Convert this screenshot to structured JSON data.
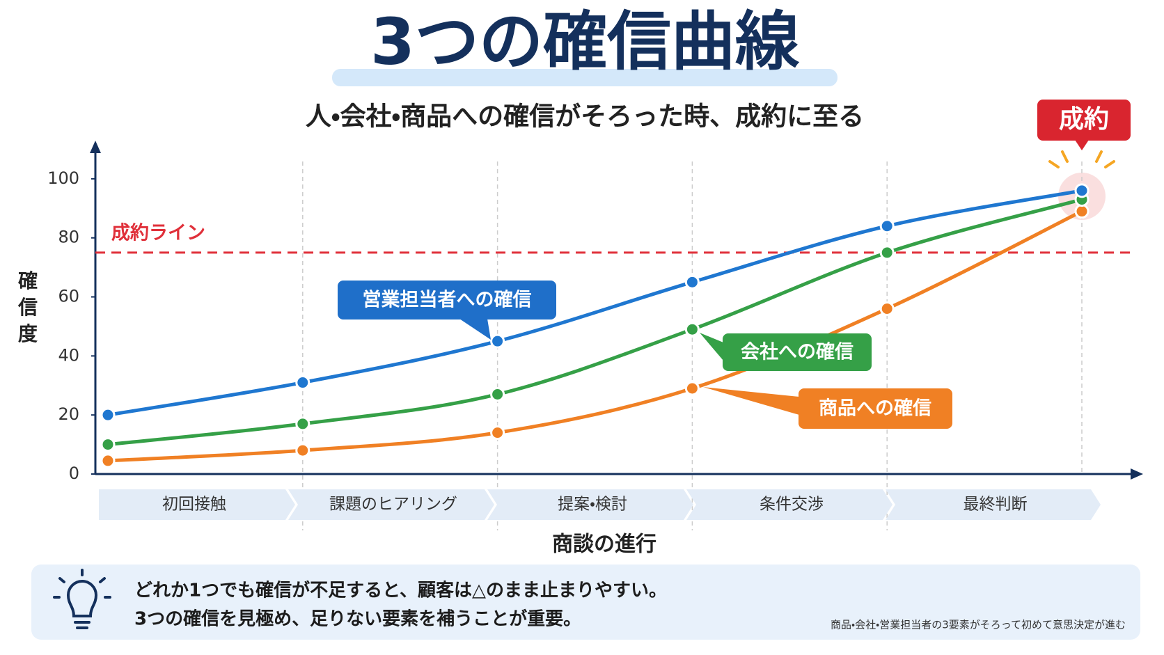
{
  "chart_data": {
    "type": "line",
    "title": "3つの確信曲線",
    "subtitle": "人・会社・商品への確信がそろった時、成約に至る",
    "badge": "成約",
    "y_label": "確信度",
    "x_label": "商談の進行",
    "stages": [
      "初回接触",
      "課題のヒアリング",
      "提案・検討",
      "条件交渉",
      "最終判断"
    ],
    "ylim": [
      0,
      112
    ],
    "yticks": [
      0,
      20,
      40,
      60,
      80,
      100
    ],
    "grid": false,
    "threshold": {
      "label": "成約ライン",
      "value": 75,
      "color": "#e0303a"
    },
    "series": [
      {
        "name": "営業担当者への確信",
        "color": "#1f77d0",
        "values": [
          20,
          31,
          45,
          65,
          84,
          96
        ]
      },
      {
        "name": "会社への確信",
        "color": "#35a047",
        "values": [
          10,
          17,
          27,
          49,
          75,
          93
        ]
      },
      {
        "name": "商品への確信",
        "color": "#f08024",
        "values": [
          4.5,
          8,
          14,
          29,
          56,
          89
        ]
      }
    ],
    "tip_lines": [
      "どれか1つでも確信が不足すると、顧客は△のまま止まりやすい。",
      "3つの確信を見極め、足りない要素を補うことが重要。"
    ],
    "footnote": "商品・会社・営業担当者の3要素がそろって初めて意思決定が進む"
  }
}
